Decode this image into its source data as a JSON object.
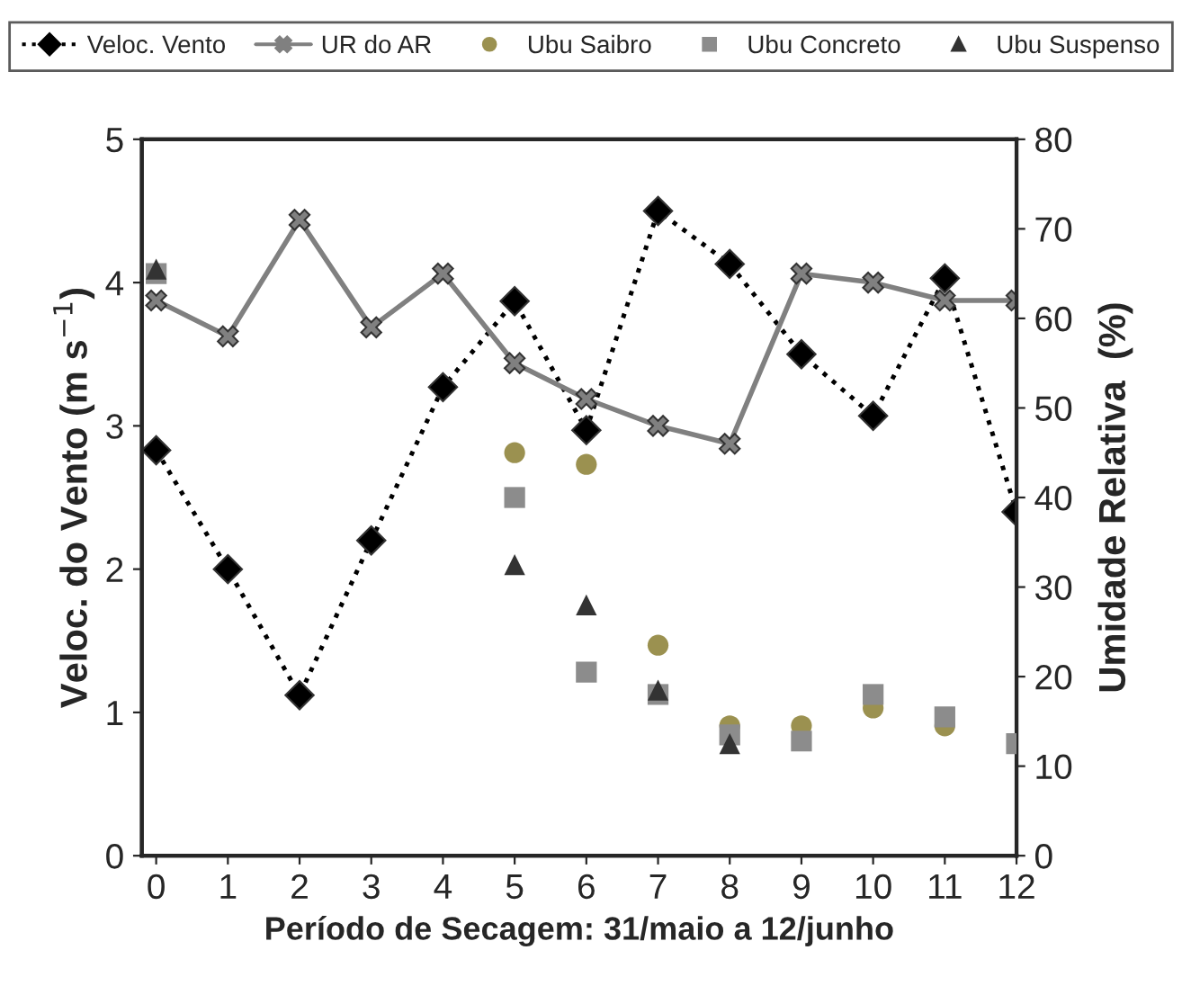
{
  "chart_data": {
    "type": "line",
    "xlabel": "Período de Secagem: 31/maio a 12/junho",
    "ylabel": "Veloc. do Vento (m s$^{−1}$)",
    "y2label": "Umidade Relativa  (%)",
    "x": [
      0,
      1,
      2,
      3,
      4,
      5,
      6,
      7,
      8,
      9,
      10,
      11,
      12
    ],
    "xlim": [
      -0.2,
      12
    ],
    "xticks": [
      0,
      1,
      2,
      3,
      4,
      5,
      6,
      7,
      8,
      9,
      10,
      11,
      12
    ],
    "ylim": [
      0,
      5
    ],
    "yticks": [
      0,
      1,
      2,
      3,
      4,
      5
    ],
    "y2lim": [
      0,
      80
    ],
    "y2ticks": [
      0,
      10,
      20,
      30,
      40,
      50,
      60,
      70,
      80
    ],
    "legend": "top",
    "grid": false,
    "series": [
      {
        "name": "Veloc. Vento",
        "color": "#000000",
        "marker": "diamond",
        "line_style": "dotted",
        "values": [
          2.83,
          2.0,
          1.12,
          2.2,
          3.27,
          3.87,
          2.97,
          4.5,
          4.13,
          3.5,
          3.07,
          4.03,
          2.4
        ]
      },
      {
        "name": "UR do AR",
        "type": "line",
        "axis": "y2",
        "color": "#808080",
        "marker": "cross",
        "line_style": "solid",
        "values": [
          62,
          58,
          71,
          59,
          65,
          55,
          51,
          48,
          46,
          65,
          64,
          62,
          62
        ]
      },
      {
        "name": "Ubu Saibro",
        "type": "scatter",
        "axis": "y2",
        "color": "#9b9150",
        "marker": "circle",
        "values": [
          null,
          null,
          null,
          null,
          null,
          45,
          43.7,
          23.5,
          14.5,
          14.5,
          16.5,
          14.5,
          null
        ]
      },
      {
        "name": "Ubu Concreto",
        "type": "scatter",
        "axis": "y2",
        "color": "#8c8c8c",
        "marker": "square",
        "values": [
          65,
          null,
          null,
          null,
          null,
          40,
          20.5,
          18,
          13.5,
          12.8,
          18,
          15.5,
          12.5
        ]
      },
      {
        "name": "Ubu Suspenso",
        "type": "scatter",
        "axis": "y2",
        "color": "#333333",
        "marker": "triangle",
        "values": [
          65.5,
          null,
          null,
          null,
          null,
          32.5,
          28,
          18.5,
          12.5,
          null,
          null,
          null,
          null
        ]
      }
    ]
  }
}
